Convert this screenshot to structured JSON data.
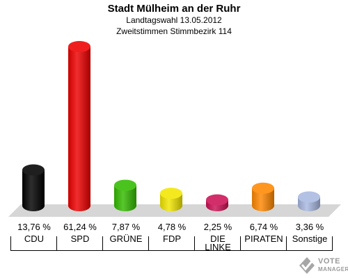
{
  "header": {
    "title": "Stadt Mülheim an der Ruhr",
    "subtitle1": "Landtagswahl 13.05.2012",
    "subtitle2": "Zweitstimmen Stimmbezirk 114"
  },
  "chart_data": {
    "type": "bar",
    "title": "Stadt Mülheim an der Ruhr",
    "subtitle": "Landtagswahl 13.05.2012 — Zweitstimmen Stimmbezirk 114",
    "categories": [
      "CDU",
      "SPD",
      "GRÜNE",
      "FDP",
      "DIE LINKE",
      "PIRATEN",
      "Sonstige"
    ],
    "values": [
      13.76,
      61.24,
      7.87,
      4.78,
      2.25,
      6.74,
      3.36
    ],
    "value_labels": [
      "13,76 %",
      "61,24 %",
      "7,87 %",
      "4,78 %",
      "2,25 %",
      "6,74 %",
      "3,36 %"
    ],
    "colors": [
      "#000000",
      "#ee0000",
      "#33bb00",
      "#f2e600",
      "#cc1155",
      "#ff8800",
      "#a8b8e0"
    ],
    "unit": "%",
    "xlabel": "",
    "ylabel": "",
    "grid": false,
    "legend": "none"
  },
  "logo": {
    "line1": "VOTE",
    "line2": "MANAGER"
  }
}
